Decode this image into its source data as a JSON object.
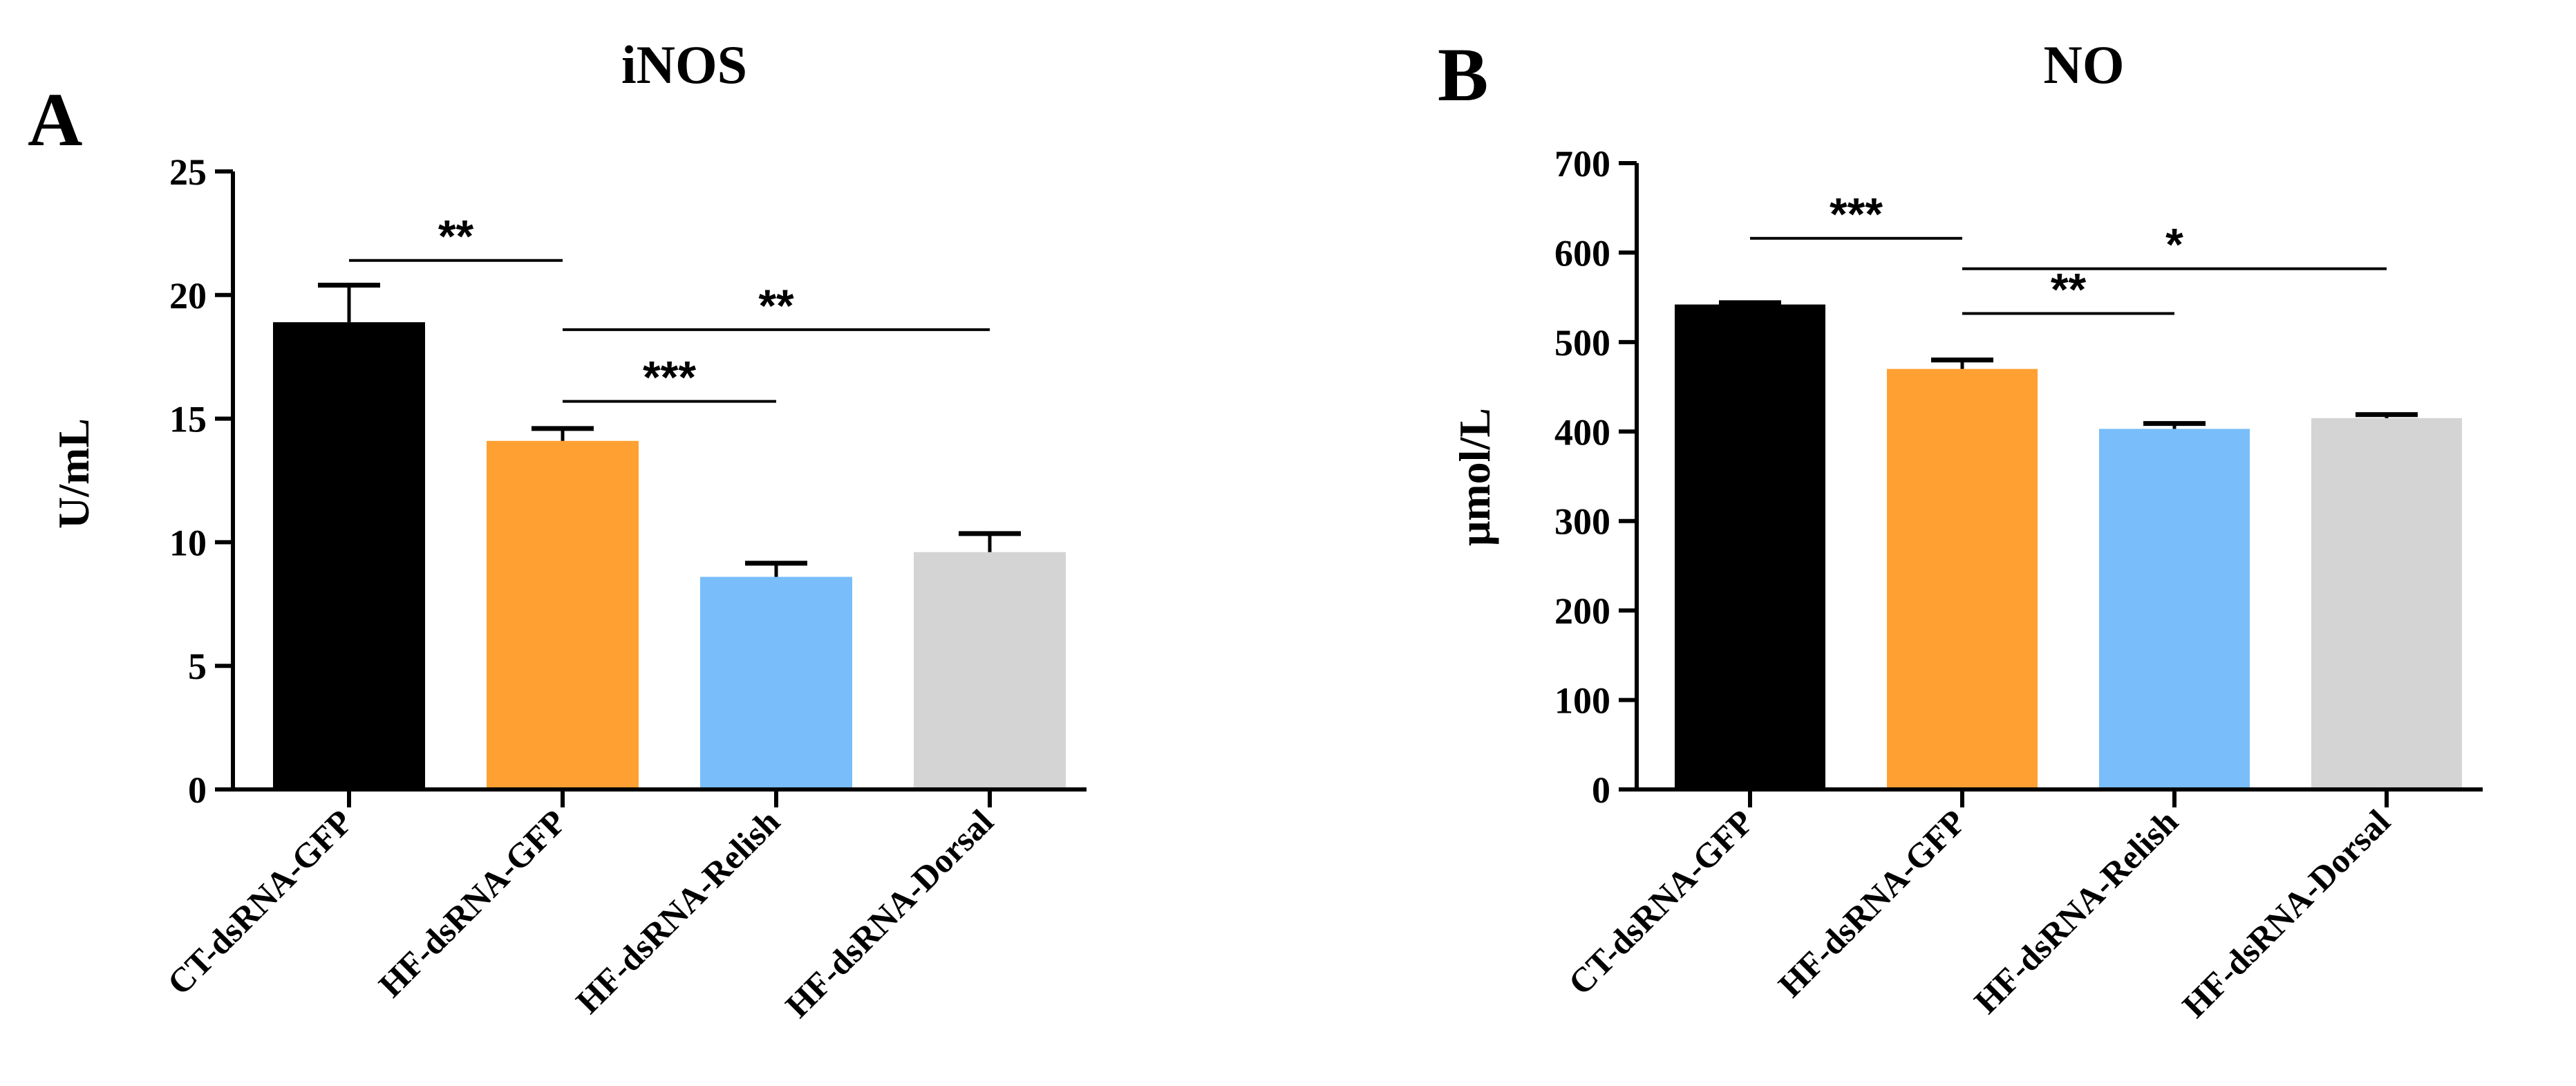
{
  "chart_data": [
    {
      "panel": "A",
      "type": "bar",
      "title": "iNOS",
      "xlabel": "",
      "ylabel": "U/mL",
      "ylim": [
        0,
        25
      ],
      "yticks": [
        0,
        5,
        10,
        15,
        20,
        25
      ],
      "categories": [
        "CT-dsRNA-GFP",
        "HF-dsRNA-GFP",
        "HF-dsRNA-Relish",
        "HF-dsRNA-Dorsal"
      ],
      "values": [
        18.9,
        14.1,
        8.6,
        9.6
      ],
      "errors": [
        1.5,
        0.5,
        0.55,
        0.75
      ],
      "colors": [
        "#000000",
        "#ffa033",
        "#79bdfa",
        "#d4d4d4"
      ],
      "significance": [
        {
          "from": 0,
          "to": 1,
          "y": 21.4,
          "label": "**"
        },
        {
          "from": 1,
          "to": 2,
          "y": 15.7,
          "label": "***"
        },
        {
          "from": 1,
          "to": 3,
          "y": 18.6,
          "label": "**"
        }
      ]
    },
    {
      "panel": "B",
      "type": "bar",
      "title": "NO",
      "xlabel": "",
      "ylabel": "μmol/L",
      "ylim": [
        0,
        700
      ],
      "yticks": [
        0,
        100,
        200,
        300,
        400,
        500,
        600,
        700
      ],
      "categories": [
        "CT-dsRNA-GFP",
        "HF-dsRNA-GFP",
        "HF-dsRNA-Relish",
        "HF-dsRNA-Dorsal"
      ],
      "values": [
        542,
        470,
        403,
        415
      ],
      "errors": [
        2,
        10,
        6,
        4
      ],
      "colors": [
        "#000000",
        "#ffa033",
        "#79bdfa",
        "#d4d4d4"
      ],
      "significance": [
        {
          "from": 0,
          "to": 1,
          "y": 616,
          "label": "***"
        },
        {
          "from": 1,
          "to": 2,
          "y": 532,
          "label": "**"
        },
        {
          "from": 1,
          "to": 3,
          "y": 582,
          "label": "*"
        }
      ]
    }
  ]
}
